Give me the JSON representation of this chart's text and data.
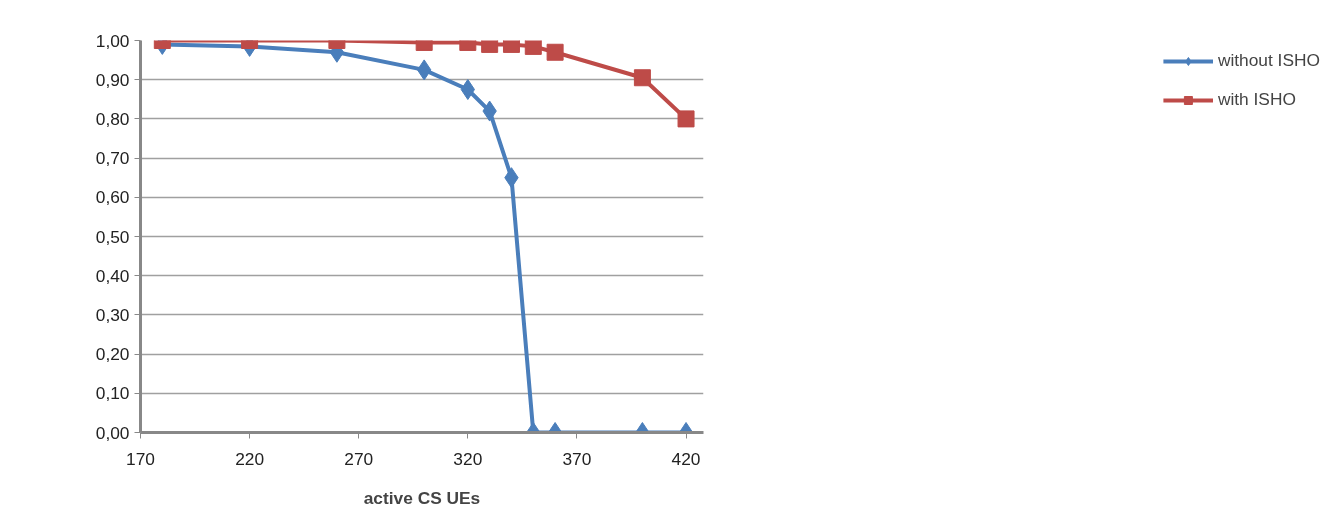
{
  "chart_data": {
    "type": "line",
    "xlabel": "active CS UEs",
    "x": [
      180,
      220,
      260,
      300,
      320,
      330,
      340,
      350,
      360,
      400,
      420
    ],
    "series": [
      {
        "name": "without ISHO",
        "color": "#4a7ebb",
        "marker": "diamond",
        "values": [
          0.99,
          0.985,
          0.97,
          0.925,
          0.875,
          0.82,
          0.65,
          0,
          0,
          0,
          0
        ]
      },
      {
        "name": "with ISHO",
        "color": "#be4b48",
        "marker": "square",
        "values": [
          1.0,
          1.0,
          1.0,
          0.995,
          0.995,
          0.99,
          0.99,
          0.985,
          0.97,
          0.905,
          0.8
        ]
      }
    ],
    "xlim": [
      170,
      428
    ],
    "xticks": [
      170,
      220,
      270,
      320,
      370,
      420
    ],
    "ylim": [
      0,
      1
    ],
    "yticks": [
      {
        "value": 0,
        "label": "0,00"
      },
      {
        "value": 0.1,
        "label": "0,10"
      },
      {
        "value": 0.2,
        "label": "0,20"
      },
      {
        "value": 0.3,
        "label": "0,30"
      },
      {
        "value": 0.4,
        "label": "0,40"
      },
      {
        "value": 0.5,
        "label": "0,50"
      },
      {
        "value": 0.6,
        "label": "0,60"
      },
      {
        "value": 0.7,
        "label": "0,70"
      },
      {
        "value": 0.8,
        "label": "0,80"
      },
      {
        "value": 0.9,
        "label": "0,90"
      },
      {
        "value": 1.0,
        "label": "1,00"
      }
    ],
    "grid": "y",
    "legend": "right",
    "line_style": "solid"
  }
}
